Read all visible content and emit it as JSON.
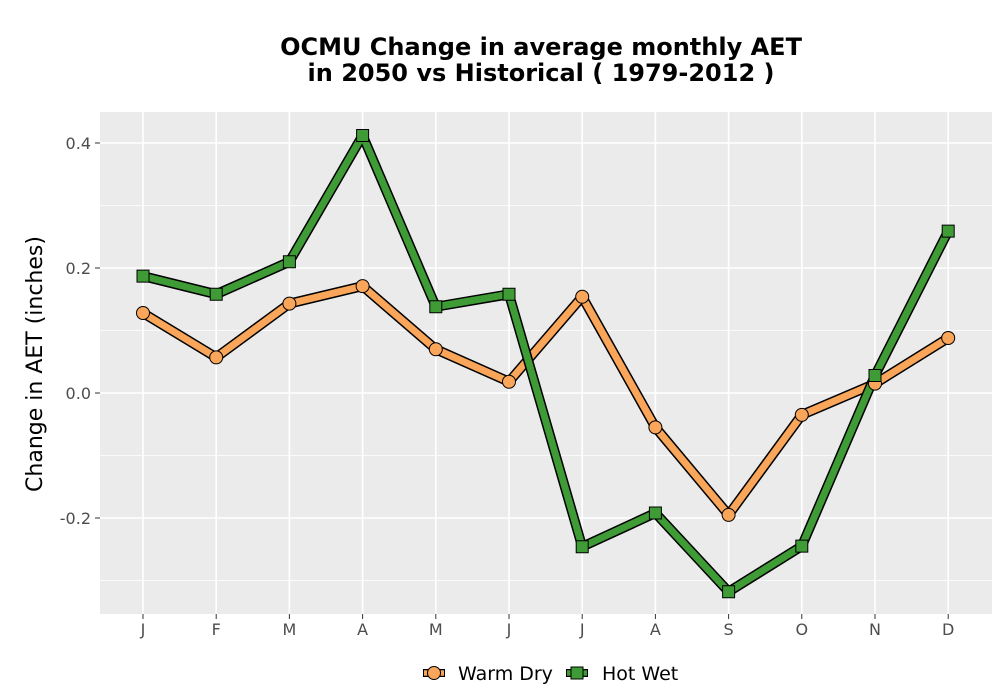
{
  "chart_data": {
    "type": "line",
    "title_line1": "OCMU  Change in average monthly AET",
    "title_line2": "in 2050 vs Historical ( 1979-2012 )",
    "xlabel": "",
    "ylabel": "Change in AET (inches)",
    "categories": [
      "J",
      "F",
      "M",
      "A",
      "M",
      "J",
      "J",
      "A",
      "S",
      "O",
      "N",
      "D"
    ],
    "ylim": [
      -0.35,
      0.45
    ],
    "yticks": [
      -0.2,
      0.0,
      0.2,
      0.4
    ],
    "ytick_labels": [
      "-0.2",
      "0.0",
      "0.2",
      "0.4"
    ],
    "grid": true,
    "legend_position": "bottom",
    "series": [
      {
        "name": "Warm Dry",
        "marker": "circle",
        "color": "#F9A65A",
        "values": [
          0.128,
          0.057,
          0.143,
          0.171,
          0.07,
          0.018,
          0.154,
          -0.055,
          -0.195,
          -0.035,
          0.015,
          0.088
        ]
      },
      {
        "name": "Hot Wet",
        "marker": "square",
        "color": "#3E9B35",
        "values": [
          0.187,
          0.158,
          0.21,
          0.412,
          0.138,
          0.158,
          -0.246,
          -0.192,
          -0.318,
          -0.245,
          0.028,
          0.259
        ]
      }
    ]
  }
}
